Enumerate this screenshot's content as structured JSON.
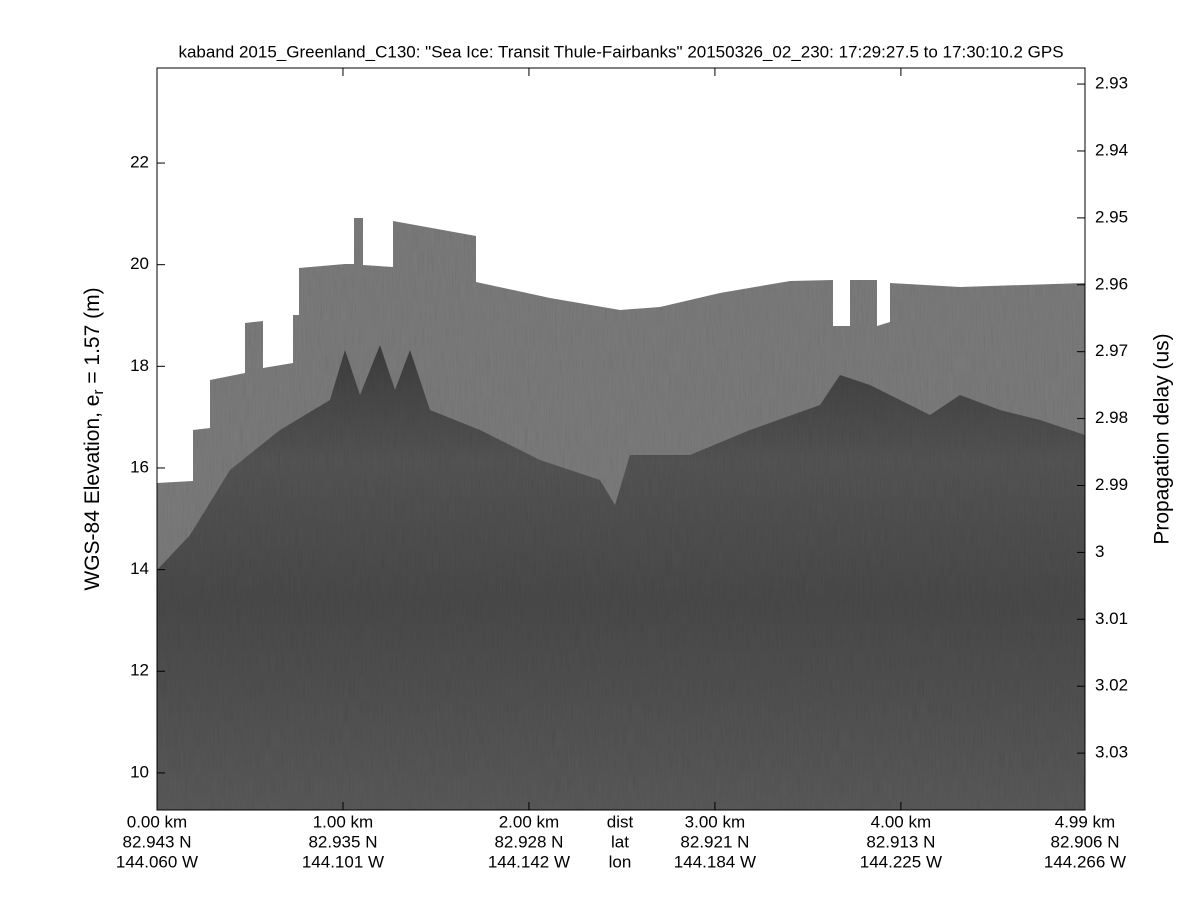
{
  "chart_data": {
    "type": "echogram",
    "title": "kaband 2015_Greenland_C130: \"Sea Ice: Transit Thule-Fairbanks\"  20150326_02_230: 17:29:27.5 to 17:30:10.2 GPS",
    "ylabel": "WGS-84 Elevation, e",
    "ylabel_sub": "r",
    "ylabel_rest": " = 1.57 (m)",
    "y2label": "Propagation delay (us)",
    "x_row_labels": [
      "dist",
      "lat",
      "lon"
    ],
    "xlim": [
      0,
      4.99
    ],
    "xticks": [
      {
        "value": 0,
        "label": "0.00 km",
        "lat": "82.943 N",
        "lon": "144.060 W"
      },
      {
        "value": 1,
        "label": "1.00 km",
        "lat": "82.935 N",
        "lon": "144.101 W"
      },
      {
        "value": 2,
        "label": "2.00 km",
        "lat": "82.928 N",
        "lon": "144.142 W"
      },
      {
        "value": 3,
        "label": "3.00 km",
        "lat": "82.921 N",
        "lon": "144.184 W"
      },
      {
        "value": 4,
        "label": "4.00 km",
        "lat": "82.913 N",
        "lon": "144.225 W"
      },
      {
        "value": 4.99,
        "label": "4.99 km",
        "lat": "82.906 N",
        "lon": "144.266 W"
      }
    ],
    "ylim": [
      9.27,
      23.87
    ],
    "yticks": [
      10,
      12,
      14,
      16,
      18,
      20,
      22
    ],
    "y2lim": [
      3.0385,
      2.9276
    ],
    "y2ticks": [
      2.93,
      2.94,
      2.95,
      2.96,
      2.97,
      2.98,
      2.99,
      3,
      3.01,
      3.02,
      3.03
    ]
  }
}
